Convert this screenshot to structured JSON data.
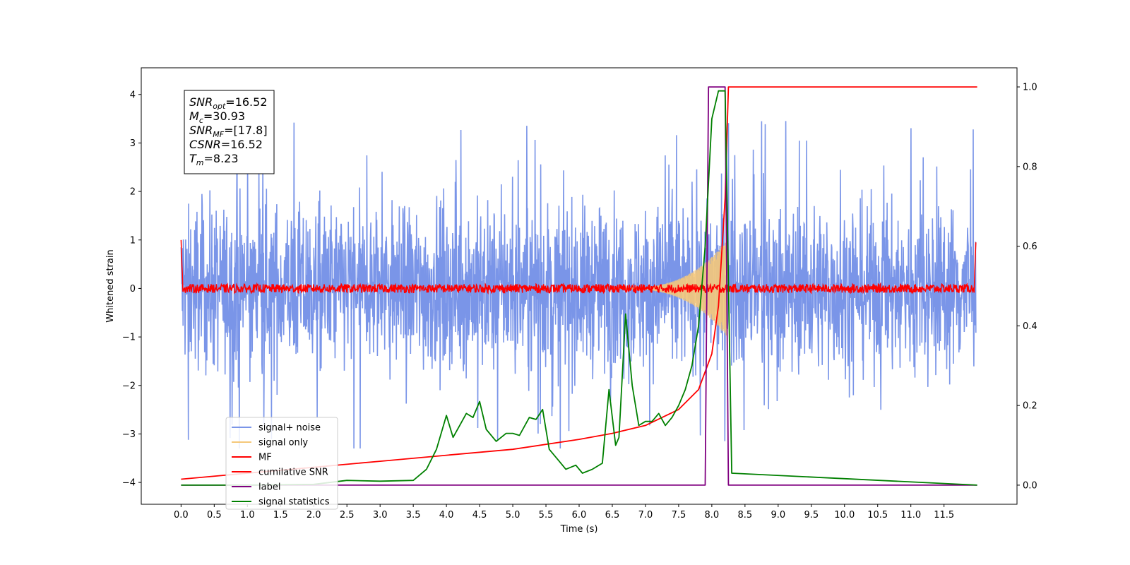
{
  "chart_data": {
    "type": "line",
    "title": "",
    "xlabel": "Time (s)",
    "ylabel": "Whitened strain",
    "xlim": [
      -0.6,
      12.6
    ],
    "ylim": [
      -4.45,
      4.55
    ],
    "y2lim": [
      -0.048,
      1.048
    ],
    "grid": false,
    "legend_position": "lower-left",
    "xticks": [
      "0.0",
      "0.5",
      "1.0",
      "1.5",
      "2.0",
      "2.5",
      "3.0",
      "3.5",
      "4.0",
      "4.5",
      "5.0",
      "5.5",
      "6.0",
      "6.5",
      "7.0",
      "7.5",
      "8.0",
      "8.5",
      "9.0",
      "9.5",
      "10.0",
      "10.5",
      "11.0",
      "11.5"
    ],
    "yticks": [
      "−4",
      "−3",
      "−2",
      "−1",
      "0",
      "1",
      "2",
      "3",
      "4"
    ],
    "y2ticks": [
      "0.0",
      "0.2",
      "0.4",
      "0.6",
      "0.8",
      "1.0"
    ],
    "annotation": {
      "lines": [
        {
          "sym": "SNR",
          "sub": "opt",
          "val": "=16.52"
        },
        {
          "sym": "M",
          "sub": "c",
          "val": "=30.93"
        },
        {
          "sym": "SNR",
          "sub": "MF",
          "val": "=[17.8]"
        },
        {
          "sym": "CSNR",
          "sub": "",
          "val": "=16.52"
        },
        {
          "sym": "T",
          "sub": "m",
          "val": "=8.23"
        }
      ]
    },
    "series": [
      {
        "name": "signal+ noise",
        "color": "#7a95e8",
        "axis": "left",
        "noise": {
          "t_start": 0.0,
          "t_end": 11.98,
          "amplitude_range": [
            -3.3,
            4.15
          ]
        }
      },
      {
        "name": "signal only",
        "color": "#f5c87a",
        "axis": "left",
        "chirp": {
          "t_start": 6.5,
          "t_merge": 8.23,
          "peak_amplitude": 1.0
        }
      },
      {
        "name": "MF",
        "color": "#ff0000",
        "axis": "left",
        "flat_noise": {
          "t_start": 0.0,
          "t_end": 11.98,
          "amplitude": 0.1,
          "edge_values": [
            1.0,
            0.95
          ]
        }
      },
      {
        "name": "cumilative SNR",
        "color": "#ff0000",
        "axis": "right",
        "x": [
          0.0,
          1.0,
          2.0,
          3.0,
          4.0,
          5.0,
          6.0,
          6.5,
          7.0,
          7.5,
          7.8,
          8.0,
          8.1,
          8.2,
          8.25,
          12.0
        ],
        "values": [
          0.015,
          0.03,
          0.045,
          0.06,
          0.075,
          0.09,
          0.115,
          0.13,
          0.15,
          0.19,
          0.24,
          0.33,
          0.45,
          0.72,
          1.0,
          1.0
        ]
      },
      {
        "name": "label",
        "color": "#800080",
        "axis": "right",
        "x": [
          0.0,
          7.9,
          7.95,
          8.2,
          8.25,
          12.0
        ],
        "values": [
          0.0,
          0.0,
          1.0,
          1.0,
          0.0,
          0.0
        ]
      },
      {
        "name": "signal statistics",
        "color": "#008000",
        "axis": "right",
        "x": [
          0.0,
          1.0,
          2.0,
          2.5,
          3.0,
          3.5,
          3.7,
          3.85,
          4.0,
          4.1,
          4.2,
          4.3,
          4.4,
          4.5,
          4.6,
          4.75,
          4.9,
          5.0,
          5.1,
          5.25,
          5.35,
          5.45,
          5.55,
          5.7,
          5.8,
          5.95,
          6.05,
          6.2,
          6.35,
          6.45,
          6.55,
          6.6,
          6.7,
          6.8,
          6.9,
          7.0,
          7.1,
          7.2,
          7.3,
          7.4,
          7.5,
          7.6,
          7.7,
          7.8,
          7.9,
          8.0,
          8.1,
          8.2,
          8.3,
          12.0
        ],
        "values": [
          0.0,
          0.0,
          0.002,
          0.012,
          0.01,
          0.012,
          0.04,
          0.09,
          0.175,
          0.12,
          0.15,
          0.18,
          0.17,
          0.21,
          0.14,
          0.11,
          0.13,
          0.13,
          0.125,
          0.17,
          0.165,
          0.19,
          0.09,
          0.06,
          0.04,
          0.05,
          0.03,
          0.04,
          0.055,
          0.24,
          0.1,
          0.12,
          0.43,
          0.25,
          0.15,
          0.16,
          0.16,
          0.18,
          0.15,
          0.17,
          0.2,
          0.24,
          0.3,
          0.4,
          0.6,
          0.92,
          0.99,
          0.99,
          0.03,
          0.0
        ]
      }
    ]
  }
}
